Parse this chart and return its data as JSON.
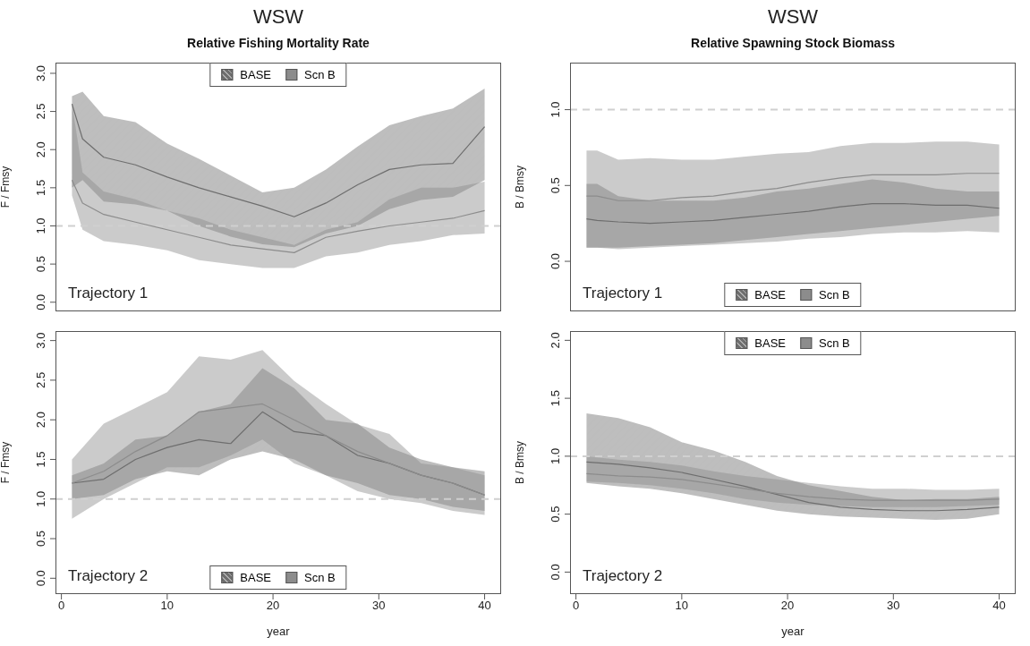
{
  "chart_data": [
    {
      "type": "line",
      "title": "WSW",
      "subtitle": "Relative Fishing Mortality Rate",
      "ylabel": "F / Fmsy",
      "annotations": [
        "Trajectory 1"
      ],
      "x": [
        1,
        2,
        4,
        7,
        10,
        13,
        16,
        19,
        22,
        25,
        28,
        31,
        34,
        37,
        40
      ],
      "series": [
        {
          "name": "BASE",
          "color": "#6e6e6e",
          "values": [
            2.6,
            2.14,
            1.9,
            1.8,
            1.64,
            1.5,
            1.38,
            1.26,
            1.12,
            1.3,
            1.54,
            1.74,
            1.8,
            1.82,
            2.3
          ],
          "lower": [
            1.5,
            1.6,
            1.32,
            1.28,
            1.2,
            1.0,
            0.86,
            0.76,
            0.72,
            0.9,
            1.0,
            1.22,
            1.34,
            1.38,
            1.6
          ],
          "upper": [
            2.7,
            2.76,
            2.44,
            2.36,
            2.08,
            1.88,
            1.66,
            1.44,
            1.5,
            1.74,
            2.04,
            2.32,
            2.44,
            2.54,
            2.8
          ]
        },
        {
          "name": "Scn B",
          "color": "#8c8c8c",
          "values": [
            1.6,
            1.3,
            1.15,
            1.05,
            0.95,
            0.85,
            0.75,
            0.7,
            0.65,
            0.85,
            0.93,
            1.0,
            1.05,
            1.1,
            1.2
          ],
          "lower": [
            1.4,
            0.95,
            0.8,
            0.75,
            0.68,
            0.55,
            0.5,
            0.45,
            0.45,
            0.6,
            0.65,
            0.75,
            0.8,
            0.88,
            0.9
          ],
          "upper": [
            2.6,
            1.7,
            1.45,
            1.35,
            1.2,
            1.1,
            0.95,
            0.85,
            0.75,
            0.95,
            1.05,
            1.35,
            1.5,
            1.5,
            1.58
          ]
        }
      ],
      "xlim": [
        -0.56,
        41.56
      ],
      "ylim": [
        -0.12,
        3.14
      ],
      "xticks": [
        0,
        10,
        20,
        30,
        40
      ],
      "yticks": [
        {
          "value": 0,
          "label": "0.0"
        },
        {
          "value": 0.5,
          "label": "0.5"
        },
        {
          "value": 1,
          "label": "1.0"
        },
        {
          "value": 1.5,
          "label": "1.5"
        },
        {
          "value": 2,
          "label": "2.0"
        },
        {
          "value": 2.5,
          "label": "2.5"
        },
        {
          "value": 3,
          "label": "3.0"
        }
      ],
      "ref_lines": [
        {
          "axis": "y",
          "value": 1,
          "color": "#d0d0d0",
          "line_style": "dashed"
        }
      ],
      "legend": "top",
      "tick_labels": "y",
      "grid": false
    },
    {
      "type": "line",
      "title": "WSW",
      "subtitle": "Relative Spawning Stock Biomass",
      "ylabel": "B / Bmsy",
      "annotations": [
        "Trajectory 1"
      ],
      "x": [
        1,
        2,
        4,
        7,
        10,
        13,
        16,
        19,
        22,
        25,
        28,
        31,
        34,
        37,
        40
      ],
      "series": [
        {
          "name": "BASE",
          "color": "#6e6e6e",
          "values": [
            0.28,
            0.27,
            0.26,
            0.25,
            0.26,
            0.27,
            0.29,
            0.31,
            0.33,
            0.36,
            0.38,
            0.38,
            0.37,
            0.37,
            0.35
          ],
          "lower": [
            0.09,
            0.09,
            0.09,
            0.1,
            0.11,
            0.12,
            0.14,
            0.16,
            0.18,
            0.2,
            0.22,
            0.24,
            0.26,
            0.28,
            0.3
          ],
          "upper": [
            0.51,
            0.51,
            0.43,
            0.4,
            0.4,
            0.4,
            0.42,
            0.46,
            0.48,
            0.51,
            0.54,
            0.52,
            0.48,
            0.46,
            0.46
          ]
        },
        {
          "name": "Scn B",
          "color": "#8c8c8c",
          "values": [
            0.43,
            0.43,
            0.4,
            0.4,
            0.42,
            0.43,
            0.46,
            0.48,
            0.52,
            0.55,
            0.57,
            0.57,
            0.57,
            0.58,
            0.58
          ],
          "lower": [
            0.09,
            0.09,
            0.08,
            0.09,
            0.1,
            0.11,
            0.12,
            0.13,
            0.15,
            0.16,
            0.18,
            0.19,
            0.19,
            0.2,
            0.19
          ],
          "upper": [
            0.73,
            0.73,
            0.67,
            0.68,
            0.67,
            0.67,
            0.69,
            0.71,
            0.72,
            0.76,
            0.78,
            0.78,
            0.79,
            0.79,
            0.77
          ]
        }
      ],
      "xlim": [
        -0.56,
        41.56
      ],
      "ylim": [
        -0.33,
        1.31
      ],
      "xticks": [
        0,
        10,
        20,
        30,
        40
      ],
      "yticks": [
        {
          "value": 0,
          "label": "0.0"
        },
        {
          "value": 0.5,
          "label": "0.5"
        },
        {
          "value": 1,
          "label": "1.0"
        }
      ],
      "ref_lines": [
        {
          "axis": "y",
          "value": 1,
          "color": "#d0d0d0",
          "line_style": "dashed"
        }
      ],
      "legend": "bottom",
      "tick_labels": "y",
      "grid": false
    },
    {
      "type": "line",
      "xlabel": "year",
      "ylabel": "F / Fmsy",
      "annotations": [
        "Trajectory 2"
      ],
      "x": [
        1,
        4,
        7,
        10,
        13,
        16,
        19,
        22,
        25,
        28,
        31,
        34,
        37,
        40
      ],
      "series": [
        {
          "name": "BASE",
          "color": "#6e6e6e",
          "values": [
            1.2,
            1.25,
            1.5,
            1.65,
            1.75,
            1.7,
            2.1,
            1.85,
            1.8,
            1.55,
            1.45,
            1.3,
            1.2,
            1.05
          ],
          "lower": [
            1.0,
            1.05,
            1.25,
            1.35,
            1.3,
            1.5,
            1.6,
            1.5,
            1.3,
            1.2,
            1.05,
            1.0,
            0.9,
            0.85
          ],
          "upper": [
            1.3,
            1.45,
            1.75,
            1.8,
            2.1,
            2.2,
            2.65,
            2.4,
            2.0,
            1.95,
            1.65,
            1.5,
            1.4,
            1.35
          ]
        },
        {
          "name": "Scn B",
          "color": "#8c8c8c",
          "values": [
            1.2,
            1.35,
            1.6,
            1.8,
            2.1,
            2.15,
            2.2,
            2.0,
            1.8,
            1.6,
            1.45,
            1.3,
            1.2,
            1.05
          ],
          "lower": [
            0.75,
            1.0,
            1.2,
            1.4,
            1.4,
            1.55,
            1.75,
            1.45,
            1.3,
            1.1,
            1.0,
            0.95,
            0.85,
            0.8
          ],
          "upper": [
            1.5,
            1.95,
            2.15,
            2.35,
            2.8,
            2.76,
            2.88,
            2.49,
            2.2,
            1.94,
            1.82,
            1.45,
            1.4,
            1.3
          ]
        }
      ],
      "xlim": [
        -0.56,
        41.56
      ],
      "ylim": [
        -0.2,
        3.12
      ],
      "xticks": [
        0,
        10,
        20,
        30,
        40
      ],
      "yticks": [
        {
          "value": 0,
          "label": "0.0"
        },
        {
          "value": 0.5,
          "label": "0.5"
        },
        {
          "value": 1,
          "label": "1.0"
        },
        {
          "value": 1.5,
          "label": "1.5"
        },
        {
          "value": 2,
          "label": "2.0"
        },
        {
          "value": 2.5,
          "label": "2.5"
        },
        {
          "value": 3,
          "label": "3.0"
        }
      ],
      "ref_lines": [
        {
          "axis": "y",
          "value": 1,
          "color": "#d0d0d0",
          "line_style": "dashed"
        }
      ],
      "legend": "bottom",
      "grid": false
    },
    {
      "type": "line",
      "xlabel": "year",
      "ylabel": "B / Bmsy",
      "annotations": [
        "Trajectory 2"
      ],
      "x": [
        1,
        4,
        7,
        10,
        13,
        16,
        19,
        22,
        25,
        28,
        31,
        34,
        37,
        40
      ],
      "series": [
        {
          "name": "BASE",
          "color": "#6e6e6e",
          "values": [
            0.95,
            0.93,
            0.9,
            0.86,
            0.8,
            0.74,
            0.67,
            0.6,
            0.56,
            0.54,
            0.53,
            0.53,
            0.54,
            0.56
          ],
          "lower": [
            0.77,
            0.74,
            0.72,
            0.68,
            0.63,
            0.58,
            0.53,
            0.5,
            0.48,
            0.47,
            0.46,
            0.45,
            0.46,
            0.5
          ],
          "upper": [
            1.37,
            1.33,
            1.25,
            1.12,
            1.05,
            0.95,
            0.83,
            0.75,
            0.7,
            0.65,
            0.62,
            0.63,
            0.63,
            0.65
          ]
        },
        {
          "name": "Scn B",
          "color": "#8c8c8c",
          "values": [
            0.85,
            0.83,
            0.82,
            0.8,
            0.76,
            0.72,
            0.68,
            0.65,
            0.63,
            0.62,
            0.62,
            0.62,
            0.62,
            0.63
          ],
          "lower": [
            0.78,
            0.77,
            0.75,
            0.72,
            0.68,
            0.63,
            0.6,
            0.58,
            0.57,
            0.56,
            0.56,
            0.56,
            0.57,
            0.58
          ],
          "upper": [
            1.0,
            0.97,
            0.95,
            0.92,
            0.87,
            0.83,
            0.8,
            0.77,
            0.74,
            0.72,
            0.72,
            0.71,
            0.71,
            0.72
          ]
        }
      ],
      "xlim": [
        -0.56,
        41.56
      ],
      "ylim": [
        -0.19,
        2.08
      ],
      "xticks": [
        0,
        10,
        20,
        30,
        40
      ],
      "yticks": [
        {
          "value": 0,
          "label": "0.0"
        },
        {
          "value": 0.5,
          "label": "0.5"
        },
        {
          "value": 1,
          "label": "1.0"
        },
        {
          "value": 1.5,
          "label": "1.5"
        },
        {
          "value": 2,
          "label": "2.0"
        }
      ],
      "ref_lines": [
        {
          "axis": "y",
          "value": 1,
          "color": "#d0d0d0",
          "line_style": "dashed"
        }
      ],
      "legend": "top",
      "grid": false
    }
  ]
}
